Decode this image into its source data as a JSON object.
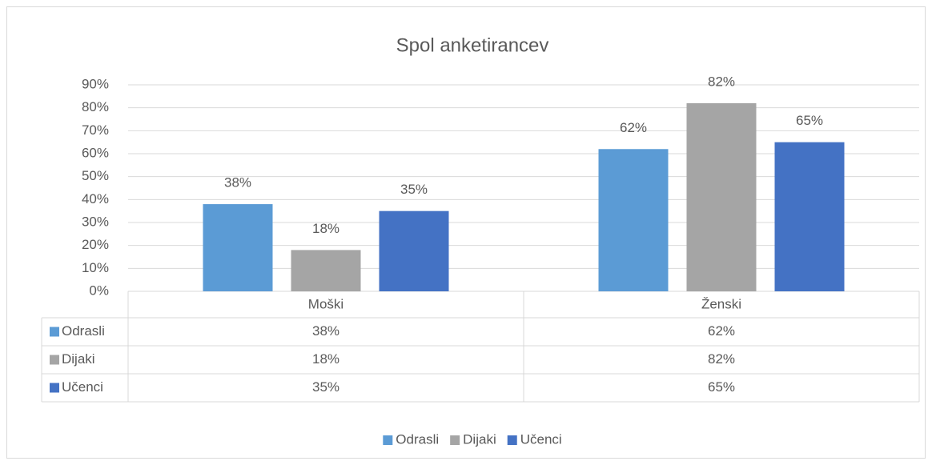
{
  "chart_data": {
    "type": "bar",
    "title": "Spol anketirancev",
    "categories": [
      "Moški",
      "Ženski"
    ],
    "series": [
      {
        "name": "Odrasli",
        "color": "#5b9bd5",
        "values": [
          38,
          62
        ],
        "value_labels": [
          "38%",
          "62%"
        ]
      },
      {
        "name": "Dijaki",
        "color": "#a5a5a5",
        "values": [
          18,
          82
        ],
        "value_labels": [
          "18%",
          "82%"
        ]
      },
      {
        "name": "Učenci",
        "color": "#4472c4",
        "values": [
          35,
          65
        ],
        "value_labels": [
          "35%",
          "65%"
        ]
      }
    ],
    "ylim": [
      0,
      90
    ],
    "yticks": [
      {
        "value": 0,
        "label": "0%"
      },
      {
        "value": 10,
        "label": "10%"
      },
      {
        "value": 20,
        "label": "20%"
      },
      {
        "value": 30,
        "label": "30%"
      },
      {
        "value": 40,
        "label": "40%"
      },
      {
        "value": 50,
        "label": "50%"
      },
      {
        "value": 60,
        "label": "60%"
      },
      {
        "value": 70,
        "label": "70%"
      },
      {
        "value": 80,
        "label": "80%"
      },
      {
        "value": 90,
        "label": "90%"
      }
    ],
    "grid": true,
    "data_table": true,
    "legend": "bottom"
  }
}
